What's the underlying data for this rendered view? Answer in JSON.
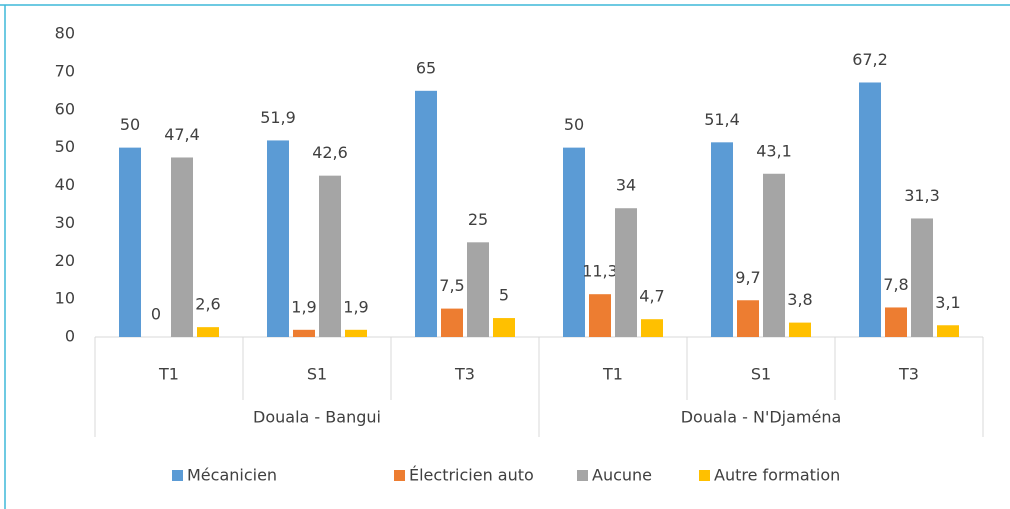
{
  "chart_data": {
    "type": "bar",
    "groups": [
      {
        "name": "Douala - Bangui",
        "categories": [
          "T1",
          "S1",
          "T3"
        ]
      },
      {
        "name": "Douala - N'Djaména",
        "categories": [
          "T1",
          "S1",
          "T3"
        ]
      }
    ],
    "series": [
      {
        "name": "Mécanicien",
        "color": "#5b9bd5",
        "values": [
          50,
          51.9,
          65,
          50,
          51.4,
          67.2
        ],
        "value_labels": [
          "50",
          "51,9",
          "65",
          "50",
          "51,4",
          "67,2"
        ]
      },
      {
        "name": "Électricien auto",
        "color": "#ed7d31",
        "values": [
          0,
          1.9,
          7.5,
          11.3,
          9.7,
          7.8
        ],
        "value_labels": [
          "0",
          "1,9",
          "7,5",
          "11,3",
          "9,7",
          "7,8"
        ]
      },
      {
        "name": "Aucune",
        "color": "#a5a5a5",
        "values": [
          47.4,
          42.6,
          25,
          34,
          43.1,
          31.3
        ],
        "value_labels": [
          "47,4",
          "42,6",
          "25",
          "34",
          "43,1",
          "31,3"
        ]
      },
      {
        "name": "Autre formation",
        "color": "#ffc000",
        "values": [
          2.6,
          1.9,
          5,
          4.7,
          3.8,
          3.1
        ],
        "value_labels": [
          "2,6",
          "1,9",
          "5",
          "4,7",
          "3,8",
          "3,1"
        ]
      }
    ],
    "ylim": [
      0,
      80
    ],
    "yticks": [
      0,
      10,
      20,
      30,
      40,
      50,
      60,
      70,
      80
    ],
    "legend": "bottom"
  }
}
